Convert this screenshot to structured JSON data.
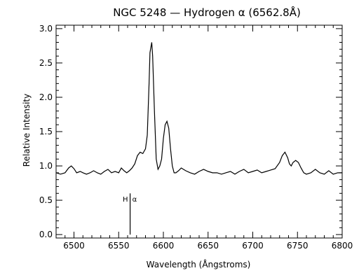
{
  "chart_data": {
    "type": "line",
    "title": "NGC 5248 — Hydrogen α (6562.8Å)",
    "xlabel": "Wavelength (Ångstroms)",
    "ylabel": "Relative Intensity",
    "xlim": [
      6480,
      6800
    ],
    "ylim": [
      -0.05,
      3.05
    ],
    "x_ticks": [
      6500,
      6550,
      6600,
      6650,
      6700,
      6750,
      6800
    ],
    "y_ticks": [
      0.0,
      0.5,
      1.0,
      1.5,
      2.0,
      2.5,
      3.0
    ],
    "x_tick_labels": [
      "6500",
      "6550",
      "6600",
      "6650",
      "6700",
      "6750",
      "6800"
    ],
    "y_tick_labels": [
      "0.0",
      "0.5",
      "1.0",
      "1.5",
      "2.0",
      "2.5",
      "3.0"
    ],
    "grid": false,
    "line_color": "#000000",
    "series": [
      {
        "x": [
          6480,
          6485,
          6490,
          6494,
          6497,
          6500,
          6503,
          6507,
          6510,
          6514,
          6518,
          6522,
          6526,
          6530,
          6534,
          6538,
          6542,
          6546,
          6550,
          6553,
          6556,
          6559,
          6562,
          6565,
          6568,
          6571,
          6574,
          6577,
          6580,
          6582,
          6584,
          6585,
          6587,
          6588,
          6590,
          6592,
          6594,
          6596,
          6598,
          6600,
          6602,
          6604,
          6606,
          6608,
          6610,
          6612,
          6614,
          6617,
          6620,
          6625,
          6630,
          6635,
          6640,
          6645,
          6650,
          6655,
          6660,
          6665,
          6670,
          6675,
          6680,
          6685,
          6690,
          6695,
          6700,
          6705,
          6710,
          6715,
          6720,
          6725,
          6730,
          6733,
          6736,
          6739,
          6741,
          6743,
          6745,
          6748,
          6751,
          6754,
          6757,
          6760,
          6765,
          6770,
          6775,
          6780,
          6785,
          6790,
          6795,
          6800
        ],
        "y": [
          0.9,
          0.88,
          0.9,
          0.97,
          1.0,
          0.96,
          0.9,
          0.92,
          0.9,
          0.88,
          0.9,
          0.93,
          0.9,
          0.88,
          0.92,
          0.95,
          0.9,
          0.92,
          0.9,
          0.97,
          0.93,
          0.9,
          0.93,
          0.97,
          1.03,
          1.15,
          1.2,
          1.18,
          1.25,
          1.45,
          2.2,
          2.65,
          2.8,
          2.6,
          1.8,
          1.1,
          0.95,
          1.0,
          1.1,
          1.4,
          1.6,
          1.65,
          1.55,
          1.25,
          1.0,
          0.9,
          0.9,
          0.93,
          0.97,
          0.93,
          0.9,
          0.88,
          0.92,
          0.95,
          0.92,
          0.9,
          0.9,
          0.88,
          0.9,
          0.92,
          0.88,
          0.92,
          0.95,
          0.9,
          0.92,
          0.94,
          0.9,
          0.92,
          0.94,
          0.96,
          1.05,
          1.15,
          1.2,
          1.12,
          1.03,
          1.0,
          1.05,
          1.08,
          1.05,
          0.97,
          0.9,
          0.88,
          0.9,
          0.95,
          0.9,
          0.88,
          0.93,
          0.88,
          0.9,
          0.9
        ]
      }
    ],
    "annotations": [
      {
        "label_parts": [
          "H",
          "α"
        ],
        "x": 6562.8,
        "y_low": 0.0,
        "y_high": 0.6
      }
    ]
  }
}
